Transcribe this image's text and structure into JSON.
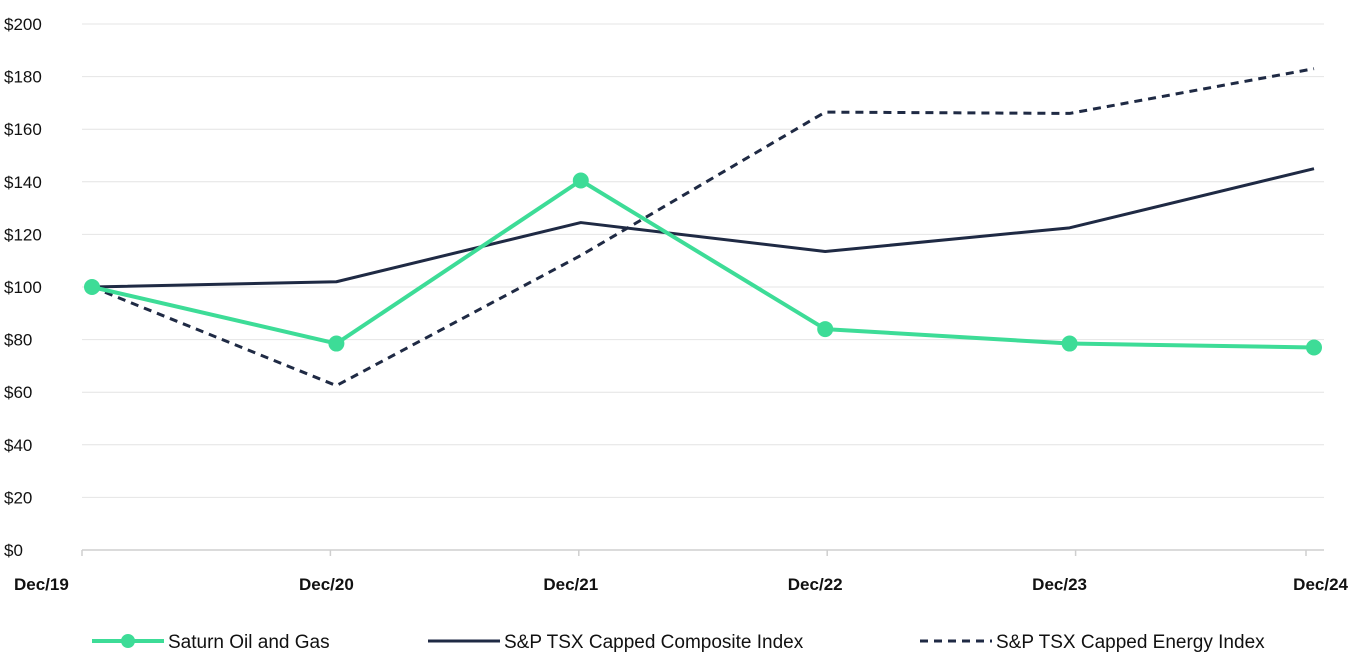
{
  "chart_data": {
    "type": "line",
    "categories": [
      "Dec/19",
      "Dec/20",
      "Dec/21",
      "Dec/22",
      "Dec/23",
      "Dec/24"
    ],
    "ylim": [
      0,
      200
    ],
    "yticks": [
      0,
      20,
      40,
      60,
      80,
      100,
      120,
      140,
      160,
      180,
      200
    ],
    "ytick_labels": [
      "$0",
      "$20",
      "$40",
      "$60",
      "$80",
      "$100",
      "$120",
      "$140",
      "$160",
      "$180",
      "$200"
    ],
    "grid": true,
    "legend_position": "bottom",
    "series": [
      {
        "name": "Saturn Oil and Gas",
        "values": [
          100,
          78.5,
          140.5,
          84,
          78.5,
          77
        ],
        "color": "#3ddc97",
        "style": "solid-markers"
      },
      {
        "name": "S&P TSX Capped Composite Index",
        "values": [
          100,
          102,
          124.5,
          113.5,
          122.5,
          145
        ],
        "color": "#1f2a44",
        "style": "solid"
      },
      {
        "name": "S&P TSX Capped Energy Index",
        "values": [
          100,
          62.5,
          112,
          166.5,
          166,
          183
        ],
        "color": "#1f2a44",
        "style": "dashed"
      }
    ]
  }
}
